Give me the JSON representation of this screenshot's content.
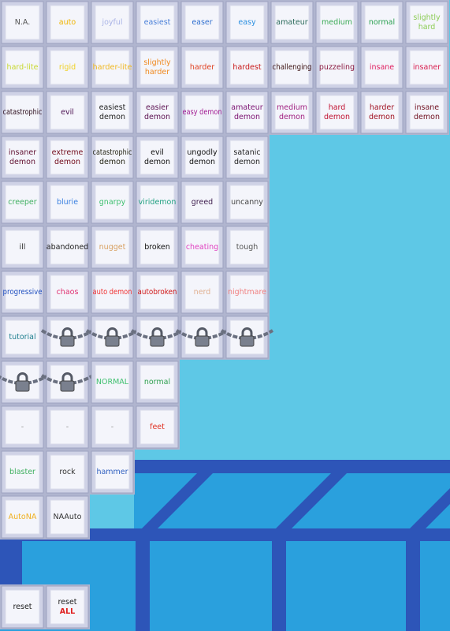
{
  "rows": [
    [
      {
        "lines": [
          "N.A."
        ],
        "color": "#555555"
      },
      {
        "lines": [
          "auto"
        ],
        "color": "#f0b400"
      },
      {
        "lines": [
          "joyful"
        ],
        "color": "#aab4e6"
      },
      {
        "lines": [
          "easiest"
        ],
        "color": "#4a7fd8"
      },
      {
        "lines": [
          "easer"
        ],
        "color": "#2f6fcf"
      },
      {
        "lines": [
          "easy"
        ],
        "color": "#2a8fe0"
      },
      {
        "lines": [
          "amateur"
        ],
        "color": "#2a6a5a"
      },
      {
        "lines": [
          "medium"
        ],
        "color": "#3aaa55"
      },
      {
        "lines": [
          "normal"
        ],
        "color": "#2aa050"
      },
      {
        "lines": [
          "slightly",
          "hard"
        ],
        "color": "#8ccc55"
      }
    ],
    [
      {
        "lines": [
          "hard-lite"
        ],
        "color": "#c8d830"
      },
      {
        "lines": [
          "rigid"
        ],
        "color": "#f0d020"
      },
      {
        "lines": [
          "harder-lite"
        ],
        "color": "#f0b820"
      },
      {
        "lines": [
          "slightly",
          "harder"
        ],
        "color": "#f08a20"
      },
      {
        "lines": [
          "harder"
        ],
        "color": "#e04020"
      },
      {
        "lines": [
          "hardest"
        ],
        "color": "#c81818"
      },
      {
        "lines": [
          "challenging"
        ],
        "color": "#3a1010"
      },
      {
        "lines": [
          "puzzeling"
        ],
        "color": "#8a1a40"
      },
      {
        "lines": [
          "insane"
        ],
        "color": "#e02060"
      },
      {
        "lines": [
          "insaner"
        ],
        "color": "#d82050"
      }
    ],
    [
      {
        "lines": [
          "catastrophic"
        ],
        "color": "#2a0a1a"
      },
      {
        "lines": [
          "evil"
        ],
        "color": "#4a1050"
      },
      {
        "lines": [
          "easiest",
          "demon"
        ],
        "color": "#222222"
      },
      {
        "lines": [
          "easier",
          "demon"
        ],
        "color": "#5a1050"
      },
      {
        "lines": [
          "easy demon"
        ],
        "color": "#a01890"
      },
      {
        "lines": [
          "amateur",
          "demon"
        ],
        "color": "#7a1070"
      },
      {
        "lines": [
          "medium",
          "demon"
        ],
        "color": "#a02080"
      },
      {
        "lines": [
          "hard",
          "demon"
        ],
        "color": "#c01030"
      },
      {
        "lines": [
          "harder",
          "demon"
        ],
        "color": "#a01020"
      },
      {
        "lines": [
          "insane",
          "demon"
        ],
        "color": "#701020"
      }
    ],
    [
      {
        "lines": [
          "insaner",
          "demon"
        ],
        "color": "#601030"
      },
      {
        "lines": [
          "extreme",
          "demon"
        ],
        "color": "#700818"
      },
      {
        "lines": [
          "catastrophic",
          "demon"
        ],
        "color": "#222211"
      },
      {
        "lines": [
          "evil",
          "demon"
        ],
        "color": "#111111"
      },
      {
        "lines": [
          "ungodly",
          "demon"
        ],
        "color": "#111111"
      },
      {
        "lines": [
          "satanic",
          "demon"
        ],
        "color": "#222222"
      }
    ],
    [
      {
        "lines": [
          "creeper"
        ],
        "color": "#40b060"
      },
      {
        "lines": [
          "blurie"
        ],
        "color": "#3a80e0"
      },
      {
        "lines": [
          "gnarpy"
        ],
        "color": "#40c070"
      },
      {
        "lines": [
          "viridemon"
        ],
        "color": "#20a080"
      },
      {
        "lines": [
          "greed"
        ],
        "color": "#402050"
      },
      {
        "lines": [
          "uncanny"
        ],
        "color": "#444444"
      }
    ],
    [
      {
        "lines": [
          "ill"
        ],
        "color": "#333333"
      },
      {
        "lines": [
          "abandoned"
        ],
        "color": "#222222"
      },
      {
        "lines": [
          "nugget"
        ],
        "color": "#d8a060"
      },
      {
        "lines": [
          "broken"
        ],
        "color": "#111111"
      },
      {
        "lines": [
          "cheating"
        ],
        "color": "#e040c0"
      },
      {
        "lines": [
          "tough"
        ],
        "color": "#555555"
      }
    ],
    [
      {
        "lines": [
          "progressive"
        ],
        "color": "#2050c0"
      },
      {
        "lines": [
          "chaos"
        ],
        "color": "#e03070"
      },
      {
        "lines": [
          "auto demon"
        ],
        "color": "#f03030"
      },
      {
        "lines": [
          "autobroken"
        ],
        "color": "#d01818"
      },
      {
        "lines": [
          "nerd"
        ],
        "color": "#e0b090"
      },
      {
        "lines": [
          "nightmare"
        ],
        "color": "#f08080"
      }
    ],
    [
      {
        "lines": [
          "tutorial"
        ],
        "color": "#208090"
      },
      {
        "locked": true
      },
      {
        "locked": true
      },
      {
        "locked": true
      },
      {
        "locked": true
      },
      {
        "locked": true
      }
    ],
    [
      {
        "locked": true
      },
      {
        "locked": true
      },
      {
        "lines": [
          "NORMAL"
        ],
        "color": "#40c070",
        "size": 15
      },
      {
        "lines": [
          "normal"
        ],
        "color": "#30a050",
        "size": 6
      }
    ],
    [
      {
        "lines": [
          "-"
        ],
        "color": "#999999"
      },
      {
        "lines": [
          "-"
        ],
        "color": "#999999"
      },
      {
        "lines": [
          "-"
        ],
        "color": "#999999"
      },
      {
        "lines": [
          "feet"
        ],
        "color": "#e03020"
      }
    ],
    [
      {
        "lines": [
          "blaster"
        ],
        "color": "#40b060"
      },
      {
        "lines": [
          "rock"
        ],
        "color": "#333333"
      },
      {
        "lines": [
          "hammer"
        ],
        "color": "#3060c0"
      }
    ],
    [
      {
        "lines": [
          "AutoNA"
        ],
        "color": "#f0b020"
      },
      {
        "lines": [
          "NAAuto"
        ],
        "color": "#333333"
      }
    ],
    [],
    [
      {
        "lines": [
          "reset"
        ],
        "color": "#222222"
      },
      {
        "lines": [
          "reset",
          "ALL"
        ],
        "color": "#222222",
        "colors": [
          "#222222",
          "#e02020"
        ]
      }
    ]
  ]
}
